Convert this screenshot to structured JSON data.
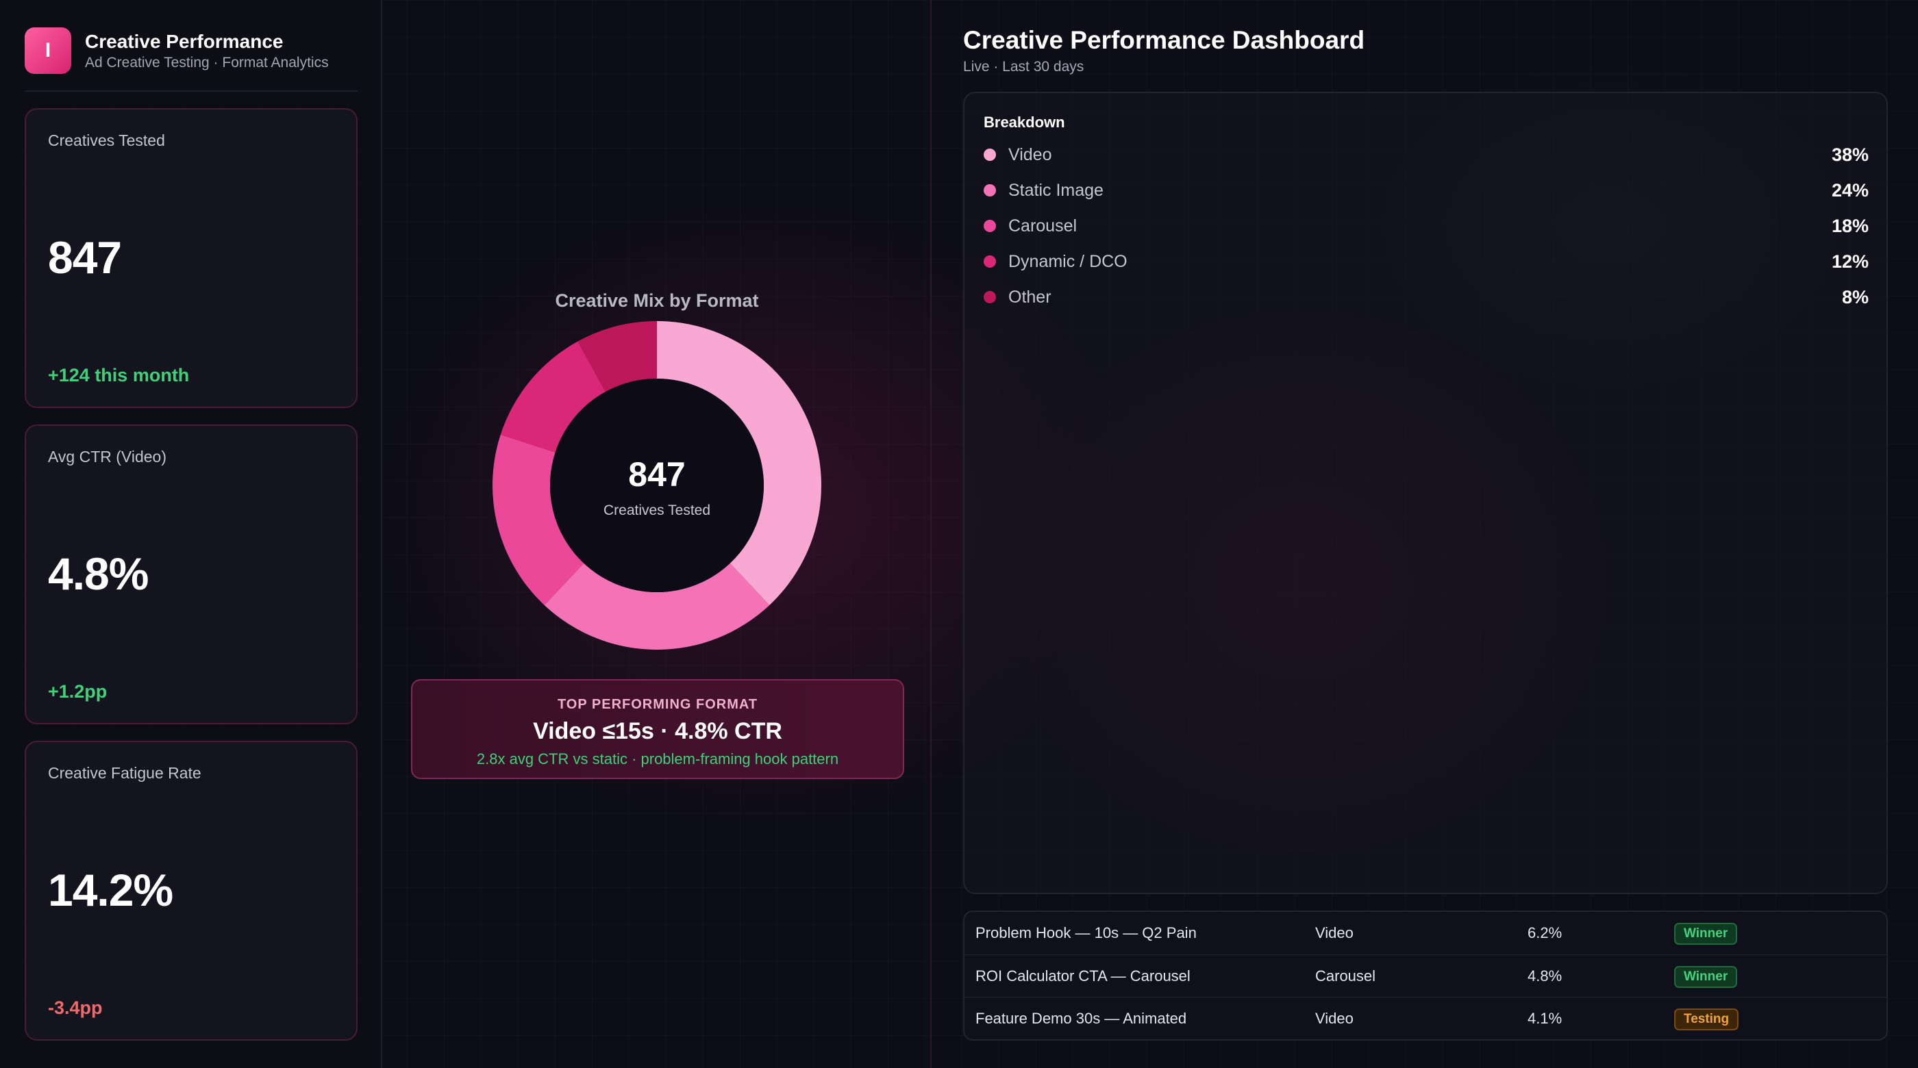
{
  "brand": {
    "logo_letter": "I",
    "title": "Creative Performance",
    "subtitle": "Ad Creative Testing · Format Analytics"
  },
  "kpis": [
    {
      "label": "Creatives Tested",
      "value": "847",
      "delta": "+124 this month",
      "trend": "positive"
    },
    {
      "label": "Avg CTR (Video)",
      "value": "4.8%",
      "delta": "+1.2pp",
      "trend": "positive"
    },
    {
      "label": "Creative Fatigue Rate",
      "value": "14.2%",
      "delta": "-3.4pp",
      "trend": "negative"
    }
  ],
  "donut": {
    "title": "Creative Mix by Format",
    "center_value": "847",
    "center_label": "Creatives Tested"
  },
  "chart_data": {
    "type": "pie",
    "title": "Creative Mix by Format",
    "categories": [
      "Video",
      "Static Image",
      "Carousel",
      "Dynamic / DCO",
      "Other"
    ],
    "values": [
      38,
      24,
      18,
      12,
      8
    ],
    "colors": [
      "#f9a8d4",
      "#f472b6",
      "#ec4899",
      "#db2777",
      "#be185d"
    ]
  },
  "top_format": {
    "label": "TOP PERFORMING FORMAT",
    "headline": "Video ≤15s · 4.8% CTR",
    "detail": "2.8x avg CTR vs static · problem-framing hook pattern"
  },
  "dashboard": {
    "title": "Creative Performance Dashboard",
    "subtitle": "Live · Last 30 days"
  },
  "breakdown": {
    "title": "Breakdown",
    "items": [
      {
        "name": "Video",
        "value": "38%",
        "color": "#f9a8d4"
      },
      {
        "name": "Static Image",
        "value": "24%",
        "color": "#f472b6"
      },
      {
        "name": "Carousel",
        "value": "18%",
        "color": "#ec4899"
      },
      {
        "name": "Dynamic / DCO",
        "value": "12%",
        "color": "#db2777"
      },
      {
        "name": "Other",
        "value": "8%",
        "color": "#be185d"
      }
    ]
  },
  "table": {
    "rows": [
      {
        "creative": "Problem Hook — 10s — Q2 Pain",
        "format": "Video",
        "ctr": "6.2%",
        "status": "Winner"
      },
      {
        "creative": "ROI Calculator CTA — Carousel",
        "format": "Carousel",
        "ctr": "4.8%",
        "status": "Winner"
      },
      {
        "creative": "Feature Demo 30s — Animated",
        "format": "Video",
        "ctr": "4.1%",
        "status": "Testing"
      }
    ]
  }
}
